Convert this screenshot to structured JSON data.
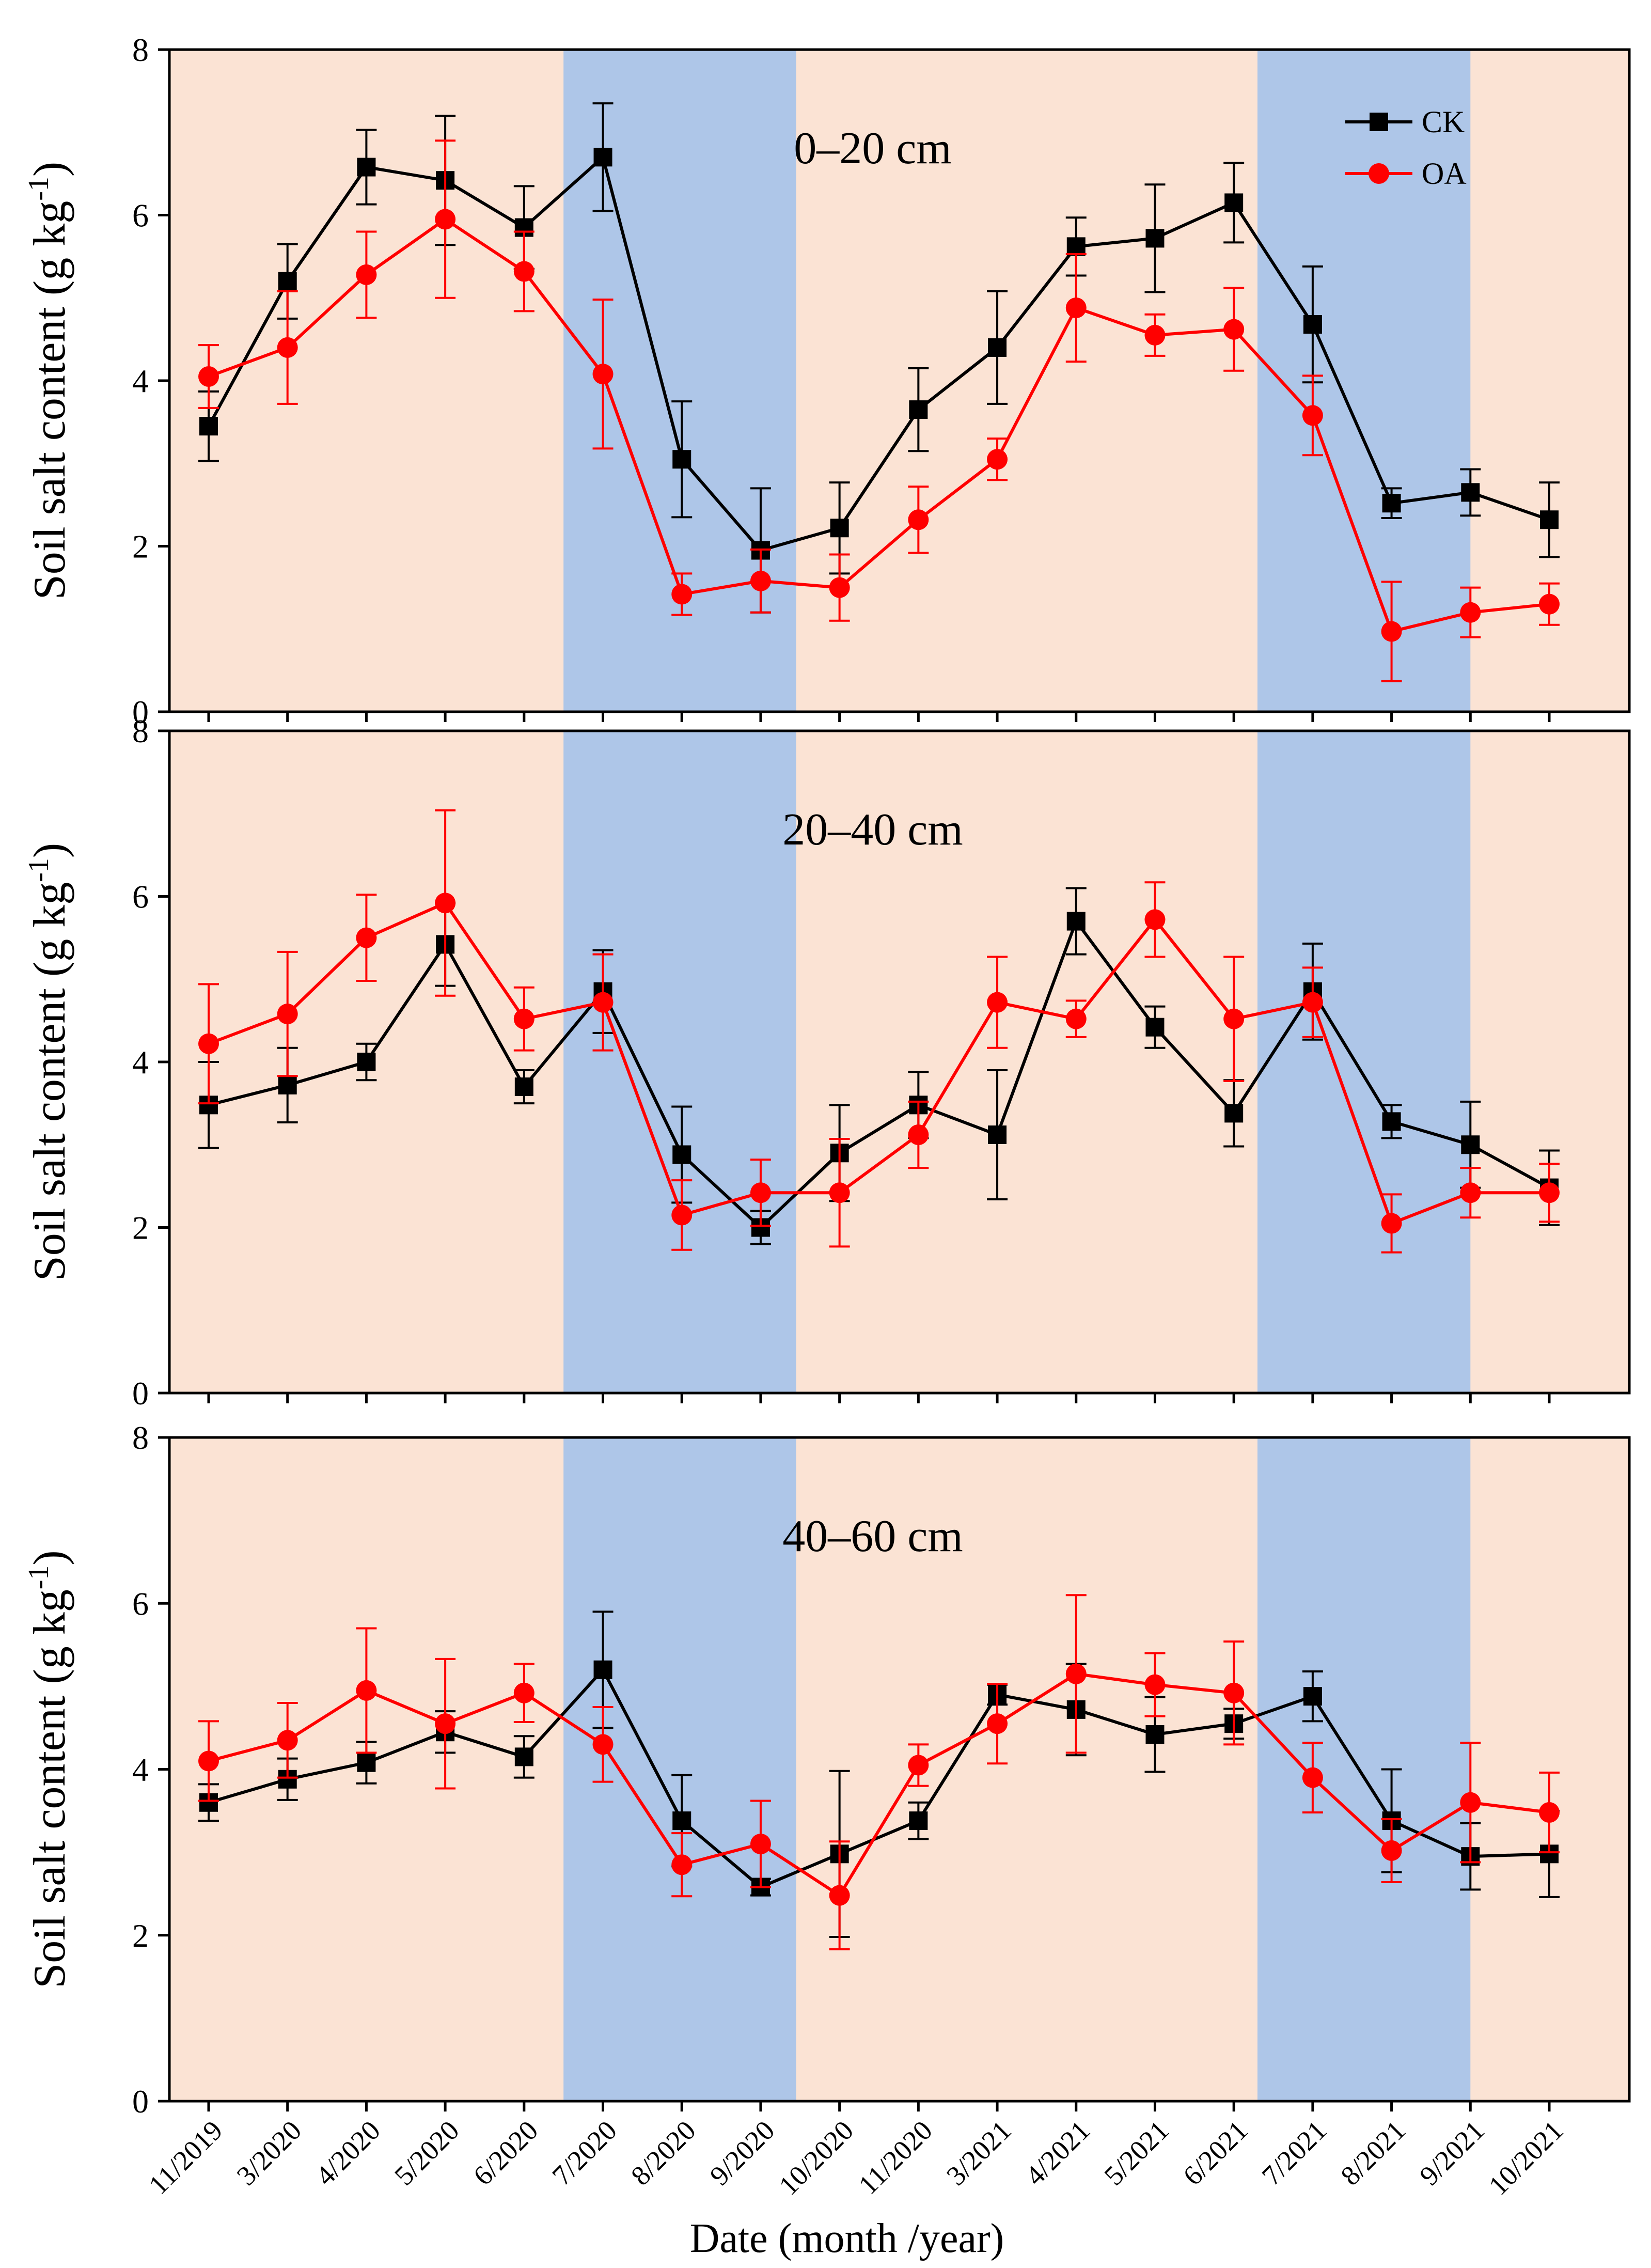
{
  "chart_data": {
    "type": "line",
    "xlabel": "Date (month /year)",
    "categories": [
      "11/2019",
      "3/2020",
      "4/2020",
      "5/2020",
      "6/2020",
      "7/2020",
      "8/2020",
      "9/2020",
      "10/2020",
      "11/2020",
      "3/2021",
      "4/2021",
      "5/2021",
      "6/2021",
      "7/2021",
      "8/2021",
      "9/2021",
      "10/2021"
    ],
    "ylim": [
      0,
      8
    ],
    "yticks": [
      0,
      2,
      4,
      6,
      8
    ],
    "ylabel": "Soil salt content (g kg",
    "ylabel_sup": "-1",
    "ylabel_close": ")",
    "grid": false,
    "legend": {
      "placement": "top-right",
      "entries": [
        {
          "name": "CK",
          "color": "#000000",
          "marker": "square"
        },
        {
          "name": "OA",
          "color": "#ff0000",
          "marker": "circle"
        }
      ]
    },
    "colors": {
      "CK": "#000000",
      "OA": "#ff0000",
      "dry_season_band": "#fbe3d4",
      "wet_season_band": "#aec6e8"
    },
    "shaded_periods": [
      {
        "from": "6/2020",
        "to": "9/2020",
        "color": "wet",
        "start_offset": 0.5,
        "end_offset": 0.45
      },
      {
        "from": "6/2021",
        "to": "9/2021",
        "color": "wet",
        "start_offset": 0.3,
        "end_offset": 0.0
      }
    ],
    "panels": [
      {
        "title": "0–20 cm",
        "series": [
          {
            "name": "CK",
            "values": [
              3.45,
              5.2,
              6.58,
              6.42,
              5.85,
              6.7,
              3.05,
              1.95,
              2.22,
              3.65,
              4.4,
              5.62,
              5.72,
              6.15,
              4.68,
              2.52,
              2.65,
              2.32
            ],
            "errors": [
              0.42,
              0.45,
              0.45,
              0.78,
              0.5,
              0.65,
              0.7,
              0.75,
              0.55,
              0.5,
              0.68,
              0.35,
              0.65,
              0.48,
              0.7,
              0.18,
              0.28,
              0.45
            ]
          },
          {
            "name": "OA",
            "values": [
              4.05,
              4.4,
              5.28,
              5.95,
              5.32,
              4.08,
              1.42,
              1.58,
              1.5,
              2.32,
              3.05,
              4.88,
              4.55,
              4.62,
              3.58,
              0.97,
              1.2,
              1.3
            ],
            "errors": [
              0.38,
              0.68,
              0.52,
              0.95,
              0.48,
              0.9,
              0.25,
              0.38,
              0.4,
              0.4,
              0.25,
              0.65,
              0.25,
              0.5,
              0.48,
              0.6,
              0.3,
              0.25
            ]
          }
        ]
      },
      {
        "title": "20–40 cm",
        "series": [
          {
            "name": "CK",
            "values": [
              3.48,
              3.72,
              4.0,
              5.42,
              3.7,
              4.85,
              2.88,
              2.0,
              2.9,
              3.48,
              3.12,
              5.7,
              4.42,
              3.38,
              4.85,
              3.28,
              3.0,
              2.48
            ],
            "errors": [
              0.52,
              0.45,
              0.22,
              0.5,
              0.2,
              0.5,
              0.58,
              0.2,
              0.58,
              0.4,
              0.78,
              0.4,
              0.25,
              0.4,
              0.58,
              0.2,
              0.52,
              0.45
            ]
          },
          {
            "name": "OA",
            "values": [
              4.22,
              4.58,
              5.5,
              5.92,
              4.52,
              4.72,
              2.15,
              2.42,
              2.42,
              3.12,
              4.72,
              4.52,
              5.72,
              4.52,
              4.72,
              2.05,
              2.42,
              2.42
            ],
            "errors": [
              0.72,
              0.75,
              0.52,
              1.12,
              0.38,
              0.58,
              0.42,
              0.4,
              0.65,
              0.4,
              0.55,
              0.22,
              0.45,
              0.75,
              0.42,
              0.35,
              0.3,
              0.35
            ]
          }
        ]
      },
      {
        "title": "40–60 cm",
        "series": [
          {
            "name": "CK",
            "values": [
              3.6,
              3.88,
              4.08,
              4.45,
              4.15,
              5.2,
              3.38,
              2.58,
              2.98,
              3.38,
              4.9,
              4.72,
              4.42,
              4.55,
              4.88,
              3.38,
              2.95,
              2.98
            ],
            "errors": [
              0.22,
              0.25,
              0.25,
              0.25,
              0.25,
              0.7,
              0.55,
              0.1,
              1.0,
              0.22,
              0.12,
              0.55,
              0.45,
              0.18,
              0.3,
              0.62,
              0.4,
              0.52
            ]
          },
          {
            "name": "OA",
            "values": [
              4.1,
              4.35,
              4.95,
              4.55,
              4.92,
              4.3,
              2.85,
              3.1,
              2.48,
              4.05,
              4.55,
              5.15,
              5.02,
              4.92,
              3.9,
              3.02,
              3.6,
              3.48
            ],
            "errors": [
              0.48,
              0.45,
              0.75,
              0.78,
              0.35,
              0.45,
              0.38,
              0.52,
              0.65,
              0.25,
              0.48,
              0.95,
              0.38,
              0.62,
              0.42,
              0.38,
              0.72,
              0.48
            ]
          }
        ]
      }
    ]
  }
}
